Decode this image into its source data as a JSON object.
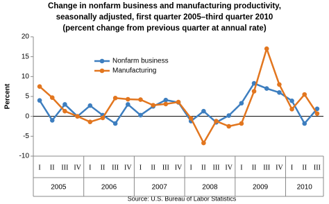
{
  "chart_data": {
    "type": "line",
    "title": [
      "Change in nonfarm business and manufacturing productivity,",
      "seasonally adjusted, first quarter 2005–third quarter 2010",
      "(percent change from previous quarter at annual rate)"
    ],
    "ylabel": "Percent",
    "groups": [
      {
        "label": "2005",
        "categories": [
          "I",
          "II",
          "III",
          "IV"
        ]
      },
      {
        "label": "2006",
        "categories": [
          "I",
          "II",
          "III",
          "IV"
        ]
      },
      {
        "label": "2007",
        "categories": [
          "I",
          "II",
          "III",
          "IV"
        ]
      },
      {
        "label": "2008",
        "categories": [
          "I",
          "II",
          "III",
          "IV"
        ]
      },
      {
        "label": "2009",
        "categories": [
          "I",
          "II",
          "III",
          "IV"
        ]
      },
      {
        "label": "2010",
        "categories": [
          "I",
          "II",
          "III"
        ]
      }
    ],
    "series": [
      {
        "name": "Nonfarm business",
        "color": "#3d7ebf",
        "values": [
          4,
          -1,
          3,
          0,
          2.7,
          0.3,
          -1.8,
          3,
          0.3,
          2.5,
          4.1,
          3.5,
          -1.2,
          1.3,
          -1.5,
          0.2,
          3.3,
          8.3,
          7,
          6,
          3.9,
          -1.8,
          1.9
        ]
      },
      {
        "name": "Manufacturing",
        "color": "#e2761f",
        "values": [
          7.5,
          4.7,
          1.3,
          0,
          -1.4,
          -0.4,
          4.6,
          4.3,
          4.2,
          2.8,
          3.1,
          3.6,
          -0.5,
          -6.7,
          -1.2,
          -2.5,
          -1.8,
          6.3,
          17,
          8,
          1.8,
          5.5,
          0.7
        ]
      }
    ],
    "ylim": [
      -10,
      20
    ],
    "yticks": [
      -10,
      -5,
      0,
      5,
      10,
      15,
      20
    ],
    "grid": false,
    "legend": "upper left",
    "source": "Source: U.S. Bureau of Labor Statistics"
  }
}
